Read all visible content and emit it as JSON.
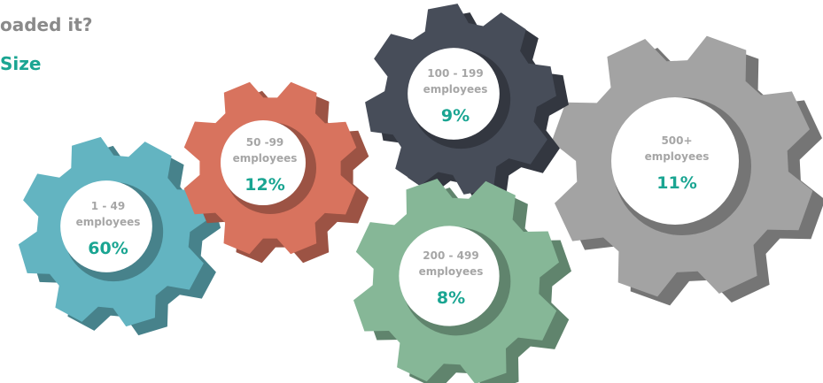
{
  "chart_data": {
    "type": "gear",
    "title": "oaded it?",
    "subtitle": "Size",
    "categories": [
      "1 - 49 employees",
      "50 -99 employees",
      "100 - 199 employees",
      "200 - 499 employees",
      "500+ employees"
    ],
    "values": [
      60,
      12,
      9,
      8,
      11
    ],
    "value_labels": [
      "60%",
      "12%",
      "9%",
      "8%",
      "11%"
    ],
    "colors": [
      "#63b4c1",
      "#d8735e",
      "#474d59",
      "#86b797",
      "#a3a3a3"
    ]
  }
}
